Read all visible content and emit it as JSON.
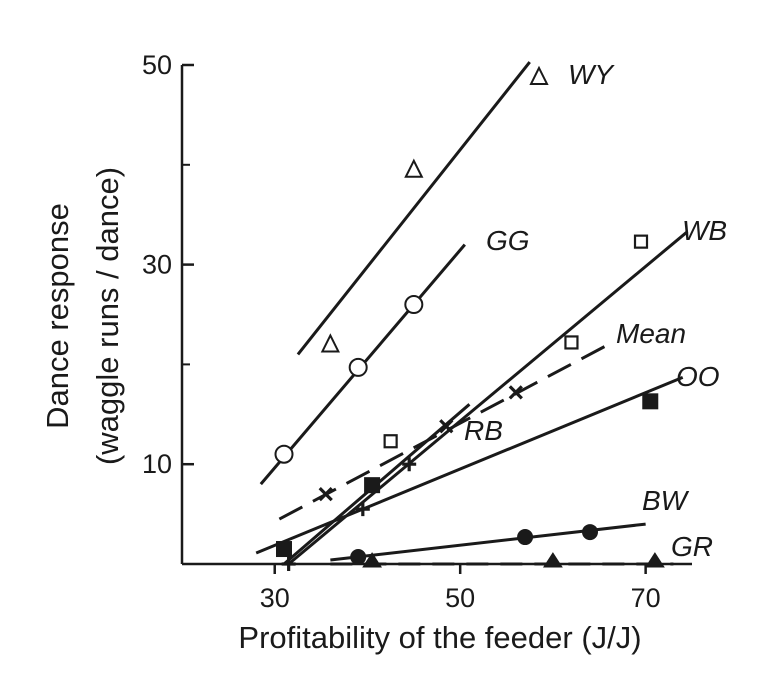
{
  "chart_data": {
    "type": "scatter",
    "title": "",
    "xlabel": "Profitability of the feeder (J/J)",
    "ylabel_lines": [
      "Dance response",
      "(waggle runs / dance)"
    ],
    "xlim": [
      20,
      75
    ],
    "ylim": [
      0,
      50
    ],
    "x_ticks": [
      30,
      50,
      70
    ],
    "y_ticks": [
      10,
      30,
      50
    ],
    "y_minor_ticks": [
      20,
      40
    ],
    "grid": false,
    "legend": "inline",
    "series": [
      {
        "name": "WY",
        "marker": "open-triangle",
        "line": "solid",
        "points": [
          [
            36,
            22
          ],
          [
            45,
            39.5
          ],
          [
            58.5,
            48.8
          ]
        ],
        "fit": [
          [
            32.5,
            21
          ],
          [
            57.5,
            50.3
          ]
        ]
      },
      {
        "name": "GG",
        "marker": "open-circle",
        "line": "solid",
        "points": [
          [
            31,
            11
          ],
          [
            39,
            19.7
          ],
          [
            45,
            26
          ]
        ],
        "fit": [
          [
            28.5,
            8
          ],
          [
            50.5,
            32
          ]
        ]
      },
      {
        "name": "WB",
        "marker": "open-square",
        "line": "solid",
        "points": [
          [
            42.5,
            12.3
          ],
          [
            62,
            22.2
          ],
          [
            69.5,
            32.3
          ]
        ],
        "fit": [
          [
            31.5,
            0
          ],
          [
            74.5,
            33.3
          ]
        ]
      },
      {
        "name": "Mean",
        "marker": "cross-x",
        "line": "dashed",
        "points": [
          [
            35.5,
            7
          ],
          [
            48.5,
            13.8
          ],
          [
            56,
            17.2
          ]
        ],
        "fit": [
          [
            30.5,
            4.5
          ],
          [
            66,
            22
          ]
        ]
      },
      {
        "name": "RB",
        "marker": "plus",
        "line": "solid",
        "points": [
          [
            31.5,
            0
          ],
          [
            39.5,
            5.5
          ],
          [
            44.5,
            10
          ]
        ],
        "fit": [
          [
            31,
            0
          ],
          [
            51,
            16
          ]
        ]
      },
      {
        "name": "OO",
        "marker": "filled-square",
        "line": "solid",
        "points": [
          [
            31,
            1.5
          ],
          [
            40.5,
            7.9
          ],
          [
            70.5,
            16.3
          ]
        ],
        "fit": [
          [
            28,
            1.1
          ],
          [
            74,
            18.7
          ]
        ]
      },
      {
        "name": "BW",
        "marker": "filled-circle",
        "line": "solid",
        "points": [
          [
            39,
            0.7
          ],
          [
            57,
            2.7
          ],
          [
            64,
            3.2
          ]
        ],
        "fit": [
          [
            36,
            0.4
          ],
          [
            70,
            4
          ]
        ]
      },
      {
        "name": "GR",
        "marker": "filled-triangle",
        "line": "dashed",
        "points": [
          [
            40.5,
            0
          ],
          [
            60,
            0
          ],
          [
            71,
            0
          ]
        ],
        "fit": [
          [
            36,
            0
          ],
          [
            73,
            0
          ]
        ]
      }
    ]
  }
}
